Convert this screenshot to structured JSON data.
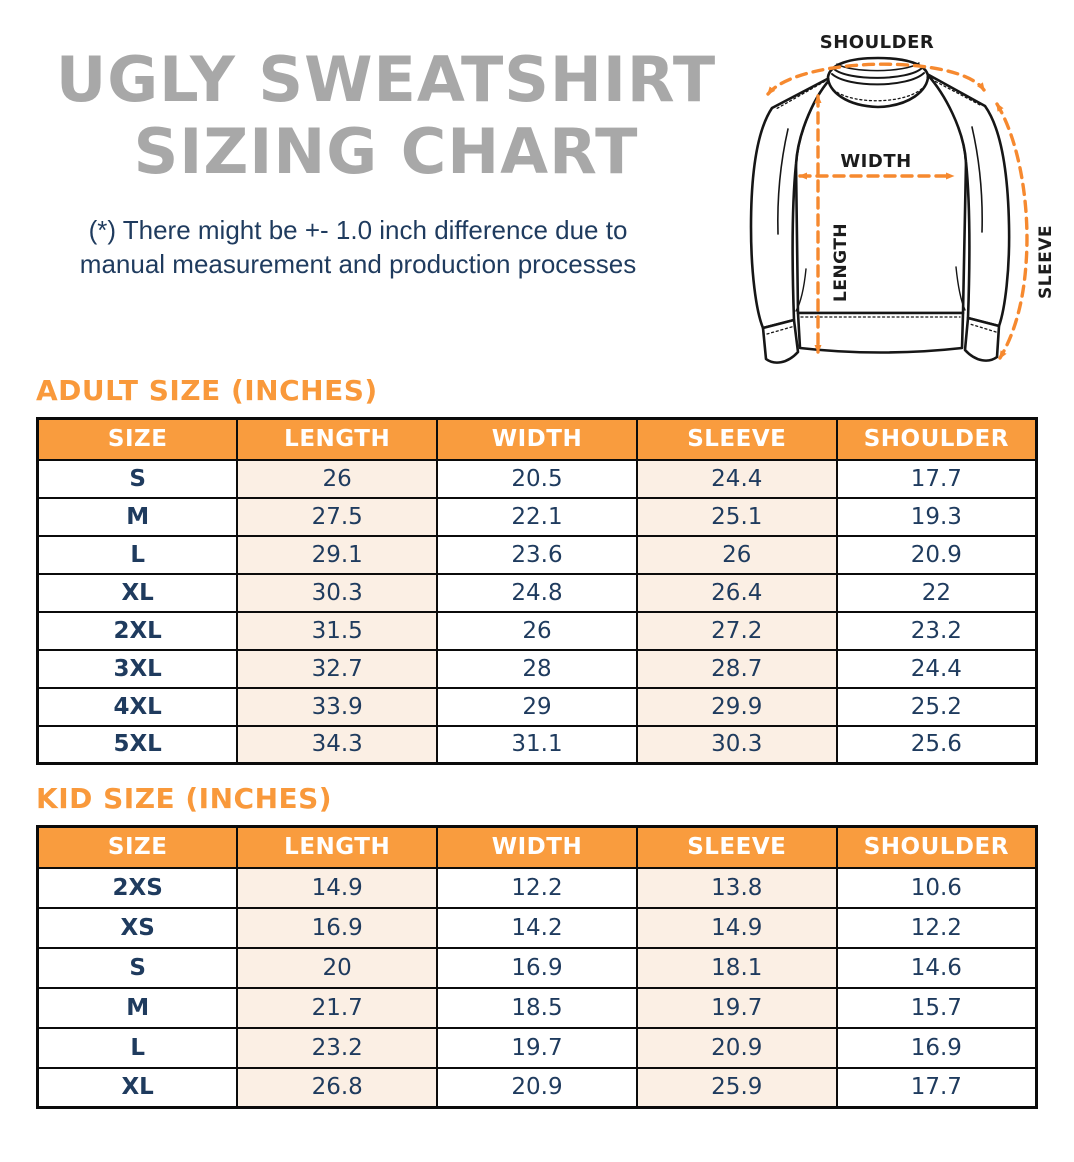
{
  "page": {
    "title_line1": "UGLY SWEATSHIRT",
    "title_line2": "SIZING CHART",
    "disclaimer_line1": "(*) There might be +- 1.0 inch difference due to",
    "disclaimer_line2": "manual measurement and production processes"
  },
  "diagram": {
    "labels": {
      "shoulder": "SHOULDER",
      "width": "WIDTH",
      "length": "LENGTH",
      "sleeve": "SLEEVE"
    }
  },
  "adult_section": {
    "heading": "ADULT SIZE (INCHES)",
    "table": {
      "columns": [
        "SIZE",
        "LENGTH",
        "WIDTH",
        "SLEEVE",
        "SHOULDER"
      ],
      "rows": [
        [
          "S",
          "26",
          "20.5",
          "24.4",
          "17.7"
        ],
        [
          "M",
          "27.5",
          "22.1",
          "25.1",
          "19.3"
        ],
        [
          "L",
          "29.1",
          "23.6",
          "26",
          "20.9"
        ],
        [
          "XL",
          "30.3",
          "24.8",
          "26.4",
          "22"
        ],
        [
          "2XL",
          "31.5",
          "26",
          "27.2",
          "23.2"
        ],
        [
          "3XL",
          "32.7",
          "28",
          "28.7",
          "24.4"
        ],
        [
          "4XL",
          "33.9",
          "29",
          "29.9",
          "25.2"
        ],
        [
          "5XL",
          "34.3",
          "31.1",
          "30.3",
          "25.6"
        ]
      ]
    }
  },
  "kid_section": {
    "heading": "KID SIZE (INCHES)",
    "table": {
      "columns": [
        "SIZE",
        "LENGTH",
        "WIDTH",
        "SLEEVE",
        "SHOULDER"
      ],
      "rows": [
        [
          "2XS",
          "14.9",
          "12.2",
          "13.8",
          "10.6"
        ],
        [
          "XS",
          "16.9",
          "14.2",
          "14.9",
          "12.2"
        ],
        [
          "S",
          "20",
          "16.9",
          "18.1",
          "14.6"
        ],
        [
          "M",
          "21.7",
          "18.5",
          "19.7",
          "15.7"
        ],
        [
          "L",
          "23.2",
          "19.7",
          "20.9",
          "16.9"
        ],
        [
          "XL",
          "26.8",
          "20.9",
          "25.9",
          "17.7"
        ]
      ]
    }
  },
  "colors": {
    "title_gray": "#A8A8A8",
    "navy_text": "#1F3B5E",
    "heading_orange": "#F9993B",
    "table_header_orange": "#F99C3E",
    "peach_cell": "#FBEFE4",
    "arrow_orange": "#F6892F",
    "table_border": "#0B0B0B"
  }
}
